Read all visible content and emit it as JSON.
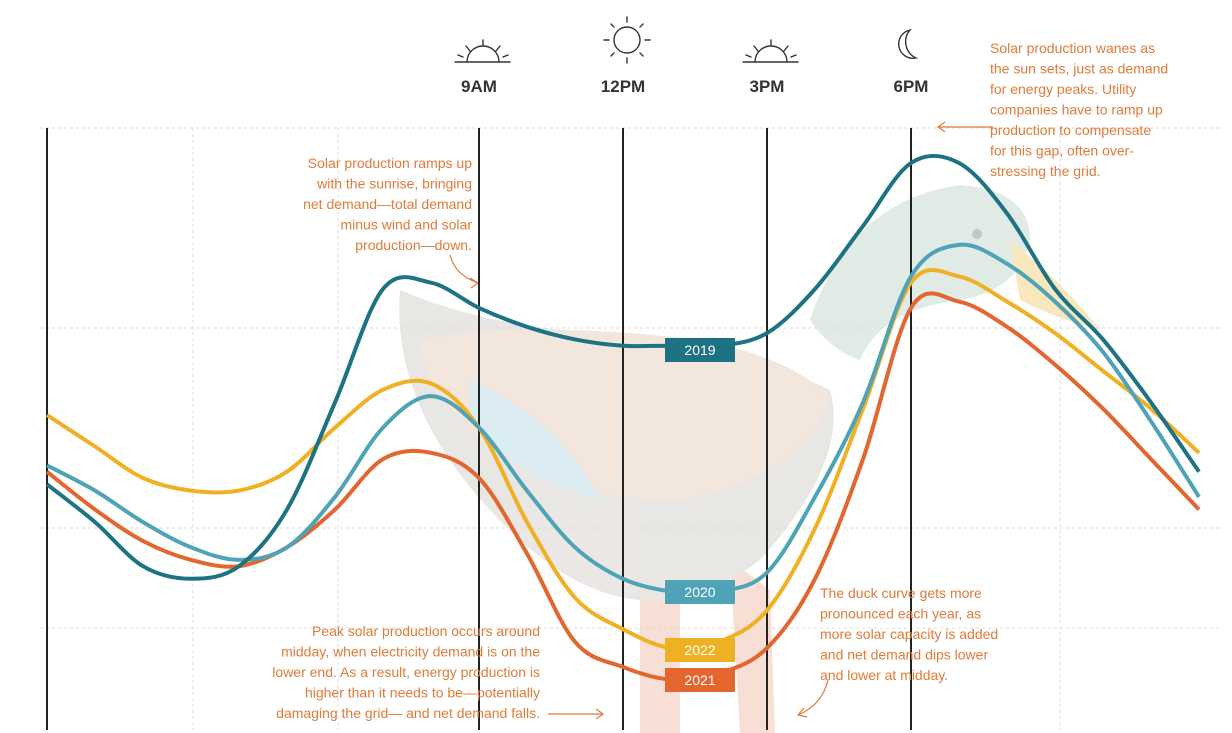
{
  "chart_data": {
    "type": "line",
    "categories": [
      null,
      null,
      null,
      null,
      null,
      null,
      null,
      null,
      null,
      "9AM",
      null,
      null,
      "12PM",
      null,
      null,
      "3PM",
      null,
      null,
      "6PM",
      null,
      null,
      null,
      null,
      null,
      null
    ],
    "series": [
      {
        "name": "2019",
        "color": "#1d7383",
        "values": [
          39,
          33,
          26,
          24,
          26,
          35,
          52,
          70,
          71,
          67,
          64,
          62,
          61,
          61,
          61,
          63,
          70,
          80,
          90,
          90,
          82,
          70,
          62,
          52,
          41
        ]
      },
      {
        "name": "2020",
        "color": "#4fa3b7",
        "values": [
          42,
          38,
          33,
          29,
          27,
          29,
          37,
          48,
          53,
          48,
          38,
          29,
          24,
          22,
          22,
          25,
          37,
          52,
          72,
          77,
          74,
          68,
          60,
          49,
          37
        ]
      },
      {
        "name": "2021",
        "color": "#e2662e",
        "values": [
          41,
          35,
          30,
          27,
          26,
          29,
          35,
          43,
          44,
          40,
          28,
          14,
          10,
          8,
          9,
          13,
          24,
          43,
          67,
          68,
          64,
          58,
          51,
          43,
          35
        ]
      },
      {
        "name": "2022",
        "color": "#f0b023",
        "values": [
          50,
          45,
          40,
          38,
          38,
          41,
          48,
          54,
          55,
          48,
          33,
          21,
          16,
          13,
          14,
          19,
          32,
          51,
          71,
          72,
          68,
          63,
          57,
          51,
          44
        ]
      }
    ],
    "ylim": [
      0,
      100
    ],
    "annotations": [
      [
        "Solar production ramps up",
        "with the sunrise, bringing",
        "net demand—total demand",
        "minus wind and solar",
        "production—down."
      ],
      [
        "Solar production wanes as",
        "the sun sets, just as demand",
        "for energy peaks. Utility",
        "companies have to ramp up",
        "production to compensate",
        "for this gap, often over-",
        "stressing the grid."
      ],
      [
        "Peak solar production occurs around",
        "midday, when electricity demand is on the",
        "lower end. As a result, energy production is",
        "higher than it needs to be—potentially",
        "damaging the grid— and net demand falls."
      ],
      [
        "The duck curve gets more",
        "pronounced each year, as",
        "more solar capacity is added",
        "and net demand dips lower",
        "and lower at midday."
      ]
    ]
  }
}
